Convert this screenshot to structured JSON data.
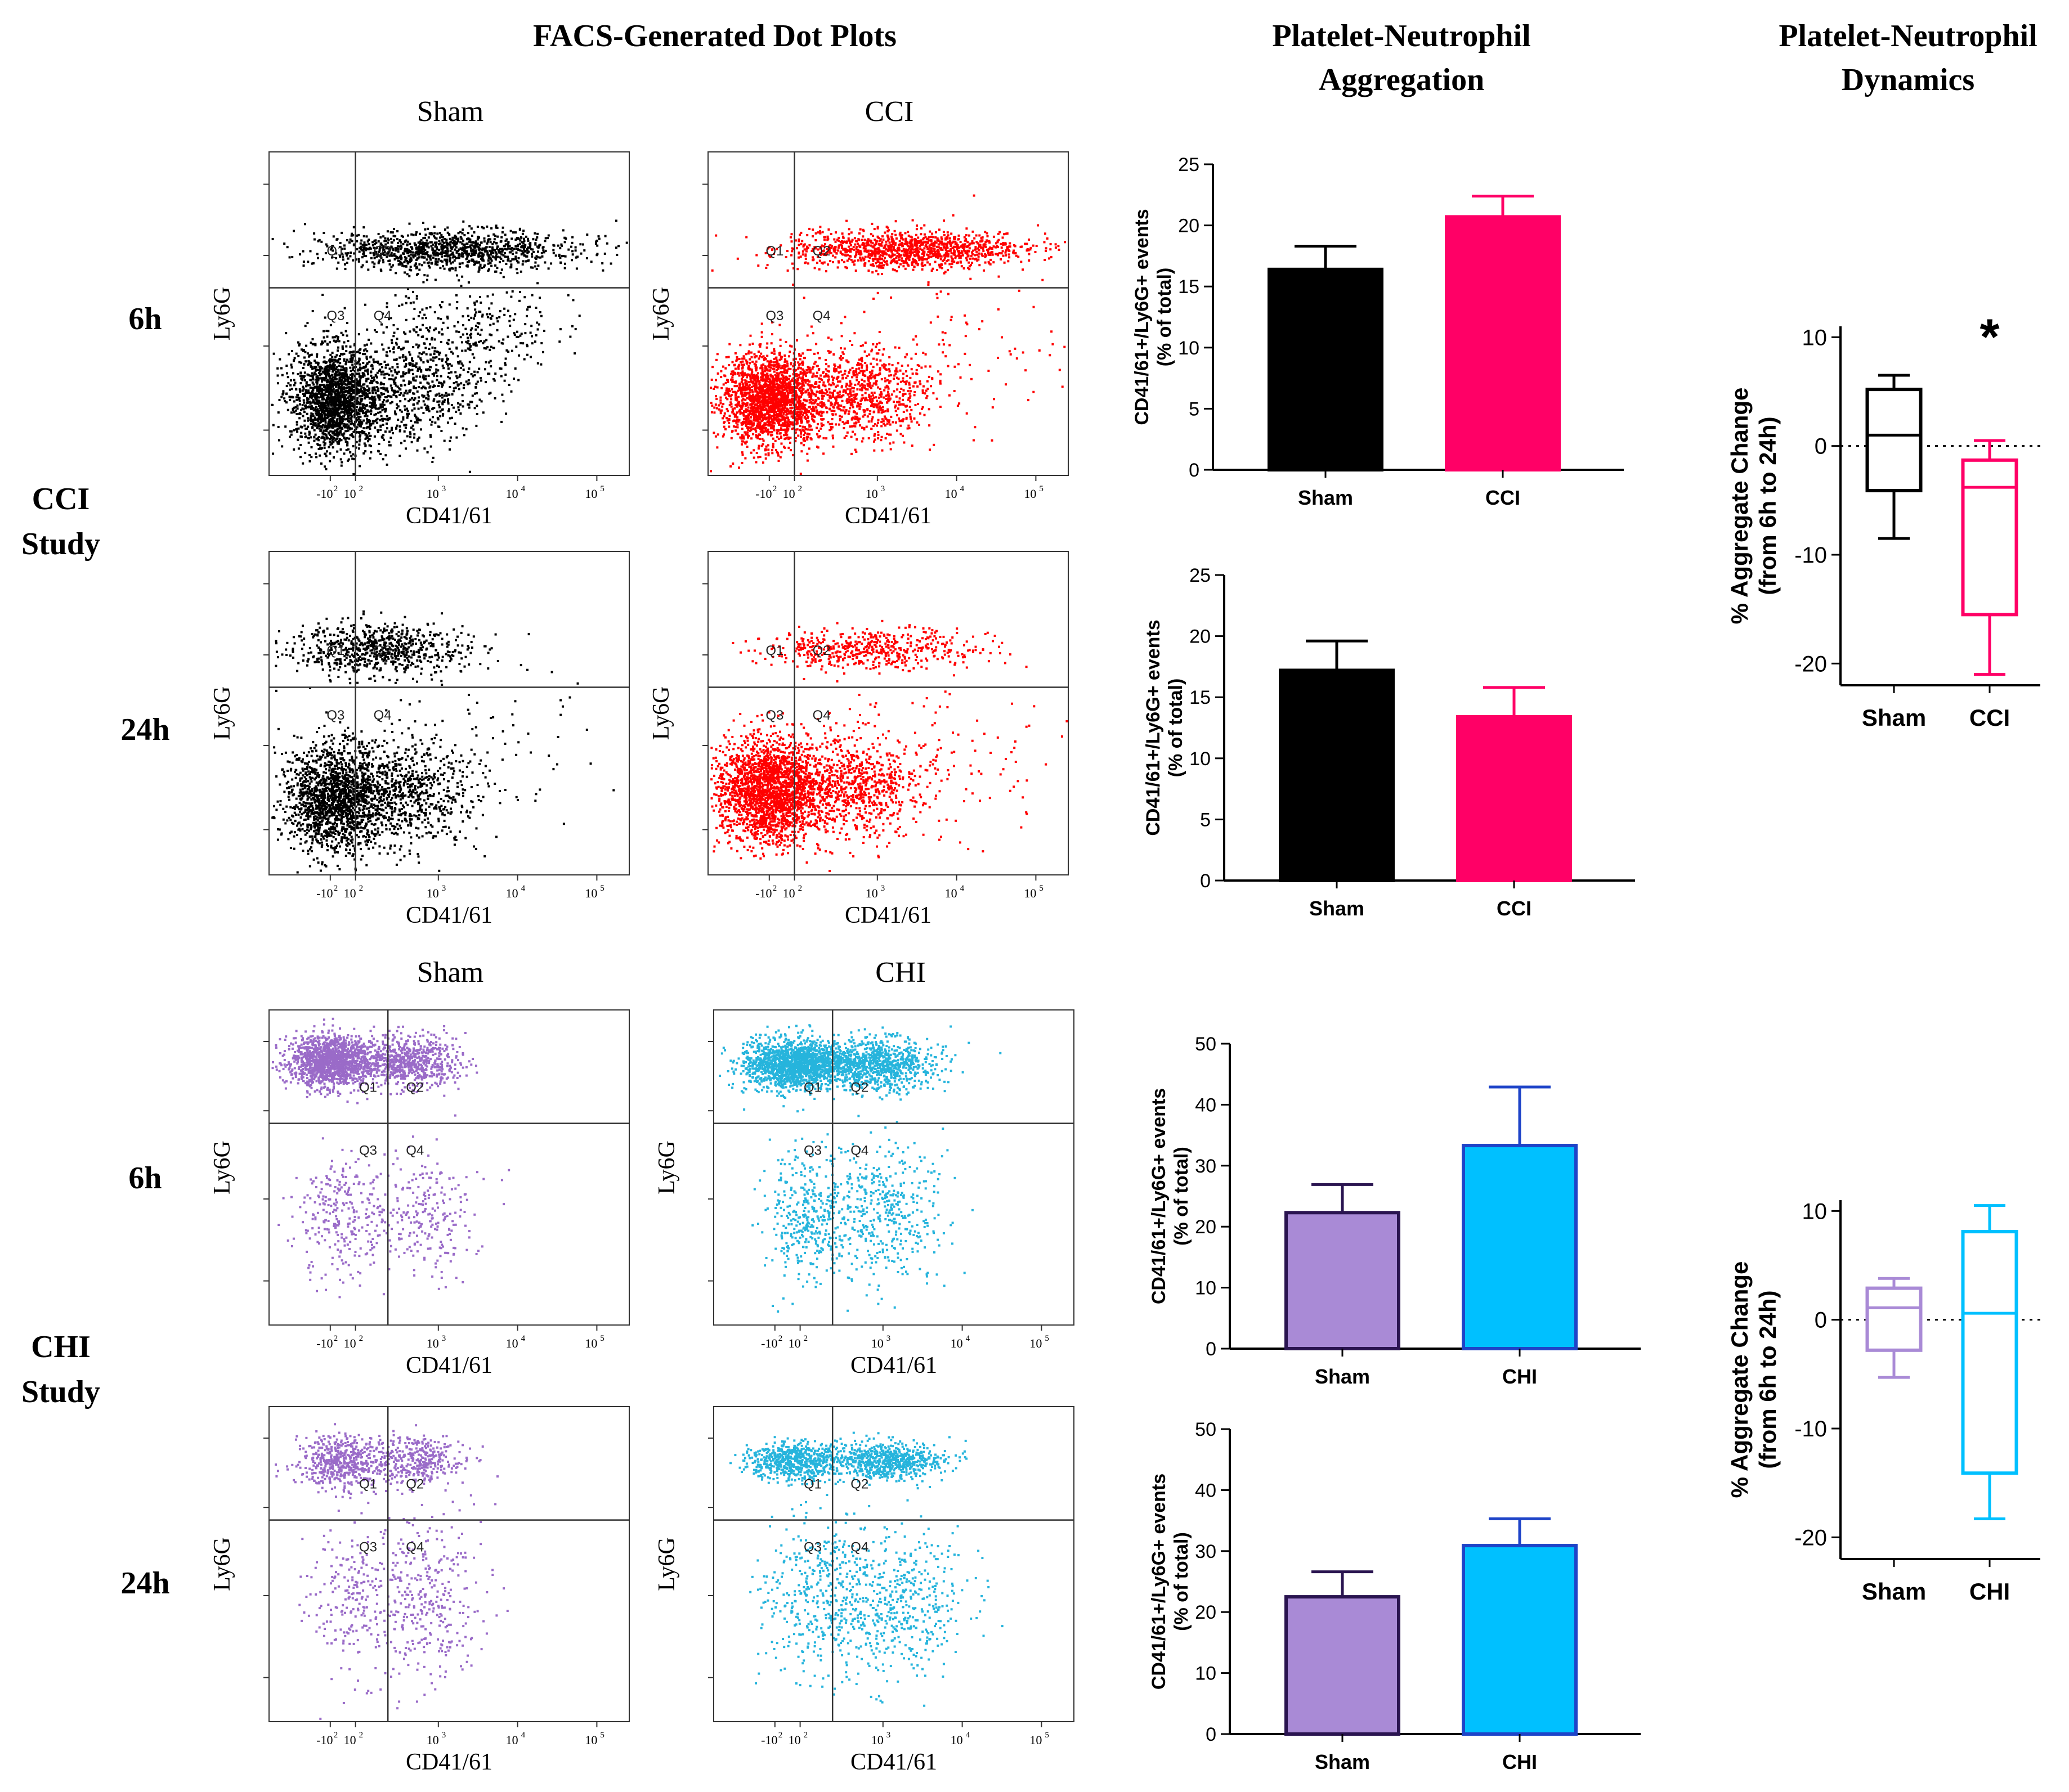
{
  "colors": {
    "sham_cci": "#000000",
    "cci": "#ff0066",
    "cci_dot": "#ff0000",
    "sham_chi": "#a98ad6",
    "sham_chi_edge": "#2a1450",
    "chi": "#00c0ff",
    "chi_edge": "#1e44c8",
    "sham_chi_dot": "#9a6bc8",
    "chi_dot": "#26b4dc"
  },
  "column_titles": {
    "dot_plots": "FACS-Generated Dot Plots",
    "aggregation_l1": "Platelet-Neutrophil",
    "aggregation_l2": "Aggregation",
    "dynamics_l1": "Platelet-Neutrophil",
    "dynamics_l2": "Dynamics"
  },
  "studies": {
    "cci_l1": "CCI",
    "cci_l2": "Study",
    "chi_l1": "CHI",
    "chi_l2": "Study"
  },
  "timepoints": {
    "t6": "6h",
    "t24": "24h"
  },
  "group_headers": {
    "sham_top": "Sham",
    "cci": "CCI",
    "sham_bottom": "Sham",
    "chi": "CHI"
  },
  "dot_plot_labels": {
    "xlabel": "CD41/61",
    "ylabel": "Ly6G",
    "quadrants": [
      "Q1",
      "Q2",
      "Q3",
      "Q4"
    ],
    "xticks": [
      "-10",
      "2",
      "10",
      "2",
      "10",
      "3",
      "10",
      "4",
      "10",
      "5"
    ]
  },
  "chart_data": [
    {
      "id": "bar-cci-6h",
      "type": "bar",
      "categories": [
        "Sham",
        "CCI"
      ],
      "values": [
        16.4,
        20.7
      ],
      "errors": [
        1.9,
        1.7
      ],
      "ylabel": "CD41/61+/Ly6G+ events",
      "ylabel2": "(% of total)",
      "ylim": [
        0,
        25
      ],
      "yticks": [
        0,
        5,
        10,
        15,
        20,
        25
      ]
    },
    {
      "id": "bar-cci-24h",
      "type": "bar",
      "categories": [
        "Sham",
        "CCI"
      ],
      "values": [
        17.2,
        13.4
      ],
      "errors": [
        2.4,
        2.4
      ],
      "ylabel": "CD41/61+/Ly6G+ events",
      "ylabel2": "(% of total)",
      "ylim": [
        0,
        25
      ],
      "yticks": [
        0,
        5,
        10,
        15,
        20,
        25
      ]
    },
    {
      "id": "bar-chi-6h",
      "type": "bar",
      "categories": [
        "Sham",
        "CHI"
      ],
      "values": [
        22.3,
        33.3
      ],
      "errors": [
        4.6,
        9.6
      ],
      "ylabel": "CD41/61+/Ly6G+ events",
      "ylabel2": "(% of total)",
      "ylim": [
        0,
        50
      ],
      "yticks": [
        0,
        10,
        20,
        30,
        40,
        50
      ]
    },
    {
      "id": "bar-chi-24h",
      "type": "bar",
      "categories": [
        "Sham",
        "CHI"
      ],
      "values": [
        22.5,
        30.9
      ],
      "errors": [
        4.1,
        4.4
      ],
      "ylabel": "CD41/61+/Ly6G+ events",
      "ylabel2": "(% of total)",
      "ylim": [
        0,
        50
      ],
      "yticks": [
        0,
        10,
        20,
        30,
        40,
        50
      ]
    },
    {
      "id": "box-cci",
      "type": "box",
      "categories": [
        "Sham",
        "CCI"
      ],
      "boxes": [
        {
          "min": -8.5,
          "q1": -4.1,
          "median": 1.0,
          "q3": 5.2,
          "max": 6.5
        },
        {
          "min": -21.0,
          "q1": -15.5,
          "median": -3.8,
          "q3": -1.3,
          "max": 0.5
        }
      ],
      "ylabel": "% Aggregate Change",
      "ylabel2": "(from 6h to 24h)",
      "ylim": [
        -22,
        11
      ],
      "yticks": [
        -20,
        -10,
        0,
        10
      ],
      "reference_line": 0,
      "annotation": "*"
    },
    {
      "id": "box-chi",
      "type": "box",
      "categories": [
        "Sham",
        "CHI"
      ],
      "boxes": [
        {
          "min": -5.3,
          "q1": -2.8,
          "median": 1.1,
          "q3": 2.9,
          "max": 3.8
        },
        {
          "min": -18.3,
          "q1": -14.1,
          "median": 0.6,
          "q3": 8.1,
          "max": 10.5
        }
      ],
      "ylabel": "% Aggregate Change",
      "ylabel2": "(from 6h to 24h)",
      "ylim": [
        -22,
        11
      ],
      "yticks": [
        -20,
        -10,
        0,
        10
      ],
      "reference_line": 0
    }
  ]
}
